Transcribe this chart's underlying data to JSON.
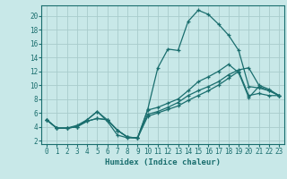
{
  "xlabel": "Humidex (Indice chaleur)",
  "bg_color": "#c8e8e8",
  "line_color": "#1a6e6e",
  "grid_color": "#a8cccc",
  "xlim": [
    -0.5,
    23.5
  ],
  "ylim": [
    1.5,
    21.5
  ],
  "xticks": [
    0,
    1,
    2,
    3,
    4,
    5,
    6,
    7,
    8,
    9,
    10,
    11,
    12,
    13,
    14,
    15,
    16,
    17,
    18,
    19,
    20,
    21,
    22,
    23
  ],
  "yticks": [
    2,
    4,
    6,
    8,
    10,
    12,
    14,
    16,
    18,
    20
  ],
  "series": [
    {
      "x": [
        0,
        1,
        2,
        3,
        4,
        5,
        6,
        7,
        8,
        9,
        10,
        11,
        12,
        13,
        14,
        15,
        16,
        17,
        18,
        19,
        20,
        21,
        22,
        23
      ],
      "y": [
        5.0,
        3.8,
        3.8,
        4.2,
        5.0,
        6.2,
        4.8,
        2.8,
        2.4,
        2.4,
        6.5,
        12.5,
        15.2,
        15.0,
        19.2,
        20.8,
        20.2,
        18.8,
        17.2,
        15.0,
        9.8,
        9.6,
        9.2,
        8.5
      ]
    },
    {
      "x": [
        0,
        1,
        2,
        3,
        4,
        5,
        6,
        7,
        8,
        9,
        10,
        11,
        12,
        13,
        14,
        15,
        16,
        17,
        18,
        19,
        20,
        21,
        22,
        23
      ],
      "y": [
        5.0,
        3.8,
        3.8,
        4.0,
        4.8,
        5.2,
        5.0,
        3.5,
        2.5,
        2.4,
        6.4,
        6.8,
        7.4,
        8.0,
        9.2,
        10.5,
        11.2,
        12.0,
        13.0,
        11.8,
        8.2,
        9.8,
        9.2,
        8.5
      ]
    },
    {
      "x": [
        0,
        1,
        2,
        3,
        4,
        5,
        6,
        7,
        8,
        9,
        10,
        11,
        12,
        13,
        14,
        15,
        16,
        17,
        18,
        19,
        20,
        21,
        22,
        23
      ],
      "y": [
        5.0,
        3.8,
        3.8,
        4.0,
        4.8,
        5.2,
        5.0,
        3.5,
        2.5,
        2.4,
        5.5,
        6.0,
        6.5,
        7.0,
        7.8,
        8.5,
        9.2,
        10.0,
        11.0,
        12.0,
        8.5,
        8.8,
        8.5,
        8.5
      ]
    },
    {
      "x": [
        0,
        1,
        2,
        3,
        4,
        5,
        6,
        7,
        8,
        9,
        10,
        11,
        12,
        13,
        14,
        15,
        16,
        17,
        18,
        19,
        20,
        21,
        22,
        23
      ],
      "y": [
        5.0,
        3.8,
        3.8,
        4.0,
        5.0,
        6.2,
        5.0,
        3.5,
        2.5,
        2.4,
        5.8,
        6.2,
        6.8,
        7.5,
        8.5,
        9.2,
        9.8,
        10.5,
        11.5,
        12.2,
        12.5,
        10.0,
        9.4,
        8.5
      ]
    }
  ]
}
